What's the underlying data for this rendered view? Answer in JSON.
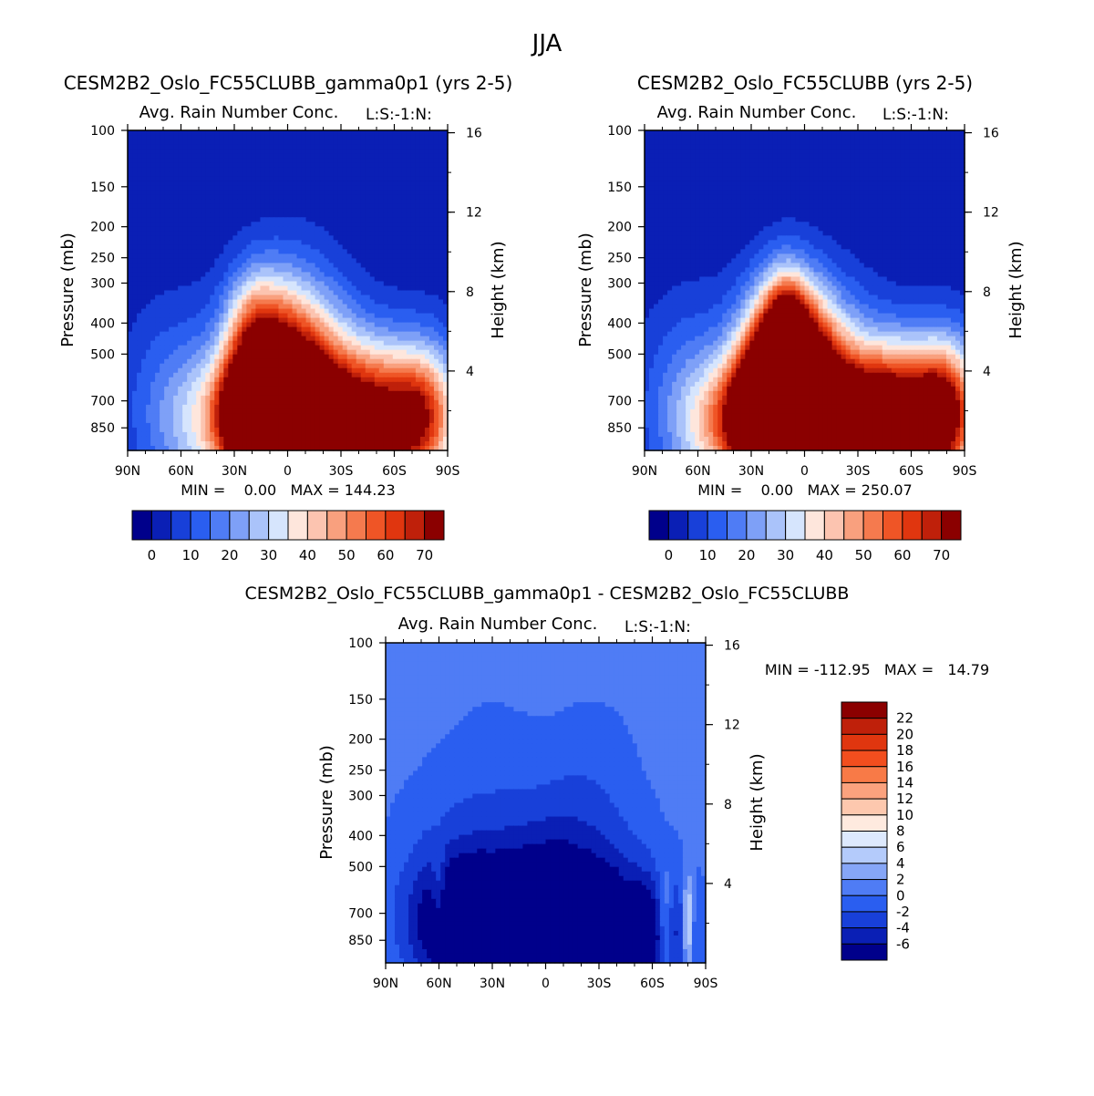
{
  "page": {
    "title": "JJA"
  },
  "colors": {
    "ticks": "#000000"
  },
  "chart_data": [
    {
      "type": "contour",
      "title": "CESM2B2_Oslo_FC55CLUBB_gamma0p1 (yrs 2-5)",
      "subtitle": "Avg. Rain Number Conc.",
      "level_label": "L:S:-1:N:",
      "ylabel": "Pressure (mb)",
      "ylabel_right": "Height (km)",
      "xticks": [
        "90N",
        "60N",
        "30N",
        "0",
        "30S",
        "60S",
        "90S"
      ],
      "pressure_ticks": [
        100,
        150,
        200,
        250,
        300,
        400,
        500,
        700,
        850
      ],
      "height_ticks": [
        16,
        12,
        8,
        4
      ],
      "stats_text": "MIN =    0.00   MAX = 144.23",
      "colorbar": {
        "orientation": "horizontal",
        "labels": [
          "0",
          "10",
          "20",
          "30",
          "40",
          "50",
          "60",
          "70"
        ],
        "colors": [
          "#00008b",
          "#0a1fb5",
          "#1840d9",
          "#2a5ef0",
          "#4f7cf5",
          "#7ea0f7",
          "#aac3fa",
          "#d6e5fd",
          "#fee6dc",
          "#fcc4b0",
          "#f9a07e",
          "#f57a4e",
          "#ef5526",
          "#e0360f",
          "#bf200a",
          "#8b0000"
        ]
      },
      "levels": [
        -5,
        0,
        5,
        10,
        15,
        20,
        25,
        30,
        35,
        40,
        45,
        50,
        55,
        60,
        65,
        70,
        75
      ],
      "field": {
        "background": 0,
        "blobs": [
          [
            0,
            850,
            22,
            2.5,
            80
          ],
          [
            -10,
            660,
            14,
            1.7,
            42
          ],
          [
            -25,
            750,
            10,
            1.0,
            40
          ],
          [
            -20,
            420,
            10,
            1.2,
            20
          ],
          [
            -40,
            820,
            20,
            1.3,
            22
          ],
          [
            -15,
            820,
            12,
            1.0,
            20
          ],
          [
            35,
            840,
            26,
            1.6,
            48
          ],
          [
            55,
            800,
            30,
            1.4,
            34
          ],
          [
            75,
            810,
            12,
            1.2,
            30
          ],
          [
            15,
            650,
            28,
            2.0,
            14
          ],
          [
            -65,
            720,
            22,
            2.2,
            14
          ],
          [
            80,
            560,
            15,
            1.5,
            8
          ]
        ],
        "holes": [
          [
            0,
            760,
            5,
            0.9,
            22
          ],
          [
            30,
            560,
            14,
            1.1,
            8
          ]
        ]
      }
    },
    {
      "type": "contour",
      "title": "CESM2B2_Oslo_FC55CLUBB (yrs 2-5)",
      "subtitle": "Avg. Rain Number Conc.",
      "level_label": "L:S:-1:N:",
      "ylabel": "Pressure (mb)",
      "ylabel_right": "Height (km)",
      "xticks": [
        "90N",
        "60N",
        "30N",
        "0",
        "30S",
        "60S",
        "90S"
      ],
      "pressure_ticks": [
        100,
        150,
        200,
        250,
        300,
        400,
        500,
        700,
        850
      ],
      "height_ticks": [
        16,
        12,
        8,
        4
      ],
      "stats_text": "MIN =    0.00   MAX = 250.07",
      "colorbar": {
        "orientation": "horizontal",
        "labels": [
          "0",
          "10",
          "20",
          "30",
          "40",
          "50",
          "60",
          "70"
        ],
        "colors": [
          "#00008b",
          "#0a1fb5",
          "#1840d9",
          "#2a5ef0",
          "#4f7cf5",
          "#7ea0f7",
          "#aac3fa",
          "#d6e5fd",
          "#fee6dc",
          "#fcc4b0",
          "#f9a07e",
          "#f57a4e",
          "#ef5526",
          "#e0360f",
          "#bf200a",
          "#8b0000"
        ]
      },
      "levels": [
        -5,
        0,
        5,
        10,
        15,
        20,
        25,
        30,
        35,
        40,
        45,
        50,
        55,
        60,
        65,
        70,
        75
      ],
      "field": {
        "background": 0,
        "blobs": [
          [
            -5,
            850,
            20,
            2.2,
            95
          ],
          [
            -12,
            650,
            14,
            1.8,
            75
          ],
          [
            -25,
            760,
            12,
            1.1,
            55
          ],
          [
            -10,
            440,
            8,
            1.1,
            40
          ],
          [
            -45,
            830,
            18,
            1.2,
            30
          ],
          [
            35,
            830,
            28,
            1.5,
            62
          ],
          [
            60,
            790,
            28,
            1.4,
            45
          ],
          [
            78,
            800,
            10,
            1.2,
            35
          ],
          [
            15,
            640,
            28,
            2.0,
            18
          ],
          [
            -65,
            700,
            22,
            2.2,
            16
          ],
          [
            82,
            560,
            14,
            1.5,
            10
          ]
        ],
        "holes": [
          [
            0,
            770,
            5,
            0.9,
            40
          ],
          [
            30,
            560,
            14,
            1.1,
            10
          ]
        ]
      }
    },
    {
      "type": "contour",
      "title": "CESM2B2_Oslo_FC55CLUBB_gamma0p1 - CESM2B2_Oslo_FC55CLUBB",
      "subtitle": "Avg. Rain Number Conc.",
      "level_label": "L:S:-1:N:",
      "ylabel": "Pressure (mb)",
      "ylabel_right": "Height (km)",
      "xticks": [
        "90N",
        "60N",
        "30N",
        "0",
        "30S",
        "60S",
        "90S"
      ],
      "pressure_ticks": [
        100,
        150,
        200,
        250,
        300,
        400,
        500,
        700,
        850
      ],
      "height_ticks": [
        16,
        12,
        8,
        4
      ],
      "stats_text": "MIN = -112.95   MAX =   14.79",
      "colorbar": {
        "orientation": "vertical",
        "labels": [
          "22",
          "20",
          "18",
          "16",
          "14",
          "12",
          "10",
          "8",
          "6",
          "4",
          "2",
          "0",
          "-2",
          "-4",
          "-6"
        ],
        "colors": [
          "#8b0000",
          "#bf200a",
          "#e0360f",
          "#f24e1e",
          "#f87a47",
          "#fba27e",
          "#fdc8ae",
          "#feeadf",
          "#dde9fd",
          "#b4cbfb",
          "#86a6f7",
          "#4f7cf5",
          "#2a5ef0",
          "#1840d9",
          "#0a1fb5",
          "#00008b"
        ]
      },
      "levels": [
        -8,
        -6,
        -4,
        -2,
        0,
        2,
        4,
        6,
        8,
        10,
        12,
        14,
        16,
        18,
        20,
        22,
        24
      ],
      "field": {
        "background": 1,
        "blobs": [
          [
            -60,
            640,
            3,
            1.0,
            4
          ],
          [
            -30,
            660,
            2,
            0.7,
            5
          ],
          [
            18,
            640,
            3,
            0.8,
            2.5
          ],
          [
            45,
            720,
            3,
            0.8,
            2.5
          ],
          [
            67,
            730,
            3,
            1.0,
            6
          ],
          [
            80,
            750,
            2,
            0.9,
            9
          ]
        ],
        "holes": [
          [
            -45,
            780,
            22,
            1.3,
            12
          ],
          [
            5,
            780,
            20,
            1.3,
            10
          ],
          [
            45,
            820,
            22,
            1.1,
            11
          ],
          [
            -20,
            560,
            26,
            1.5,
            3
          ],
          [
            40,
            560,
            28,
            1.6,
            2.5
          ],
          [
            -60,
            460,
            25,
            2.0,
            2
          ],
          [
            10,
            420,
            20,
            1.8,
            2.5
          ],
          [
            -30,
            250,
            20,
            2.0,
            1.4
          ],
          [
            30,
            250,
            20,
            2.0,
            1.4
          ]
        ]
      }
    }
  ]
}
